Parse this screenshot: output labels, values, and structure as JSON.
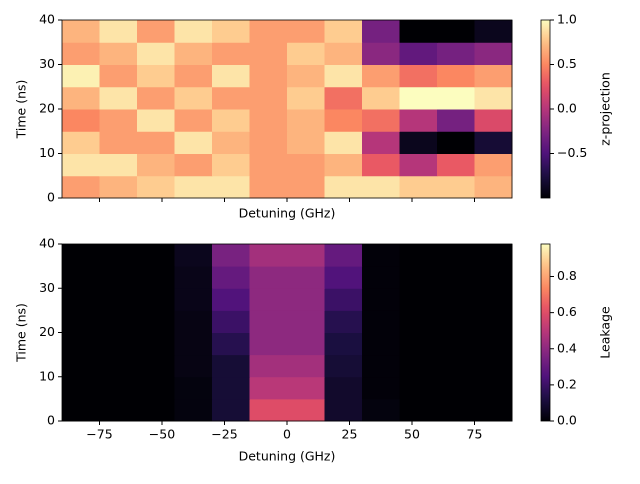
{
  "chart_data": [
    {
      "type": "heatmap",
      "xlabel": "Detuning (GHz)",
      "ylabel": "Time (ns)",
      "colorbar_label": "z-projection",
      "colormap": "magma",
      "xbins": [
        -90,
        -75,
        -60,
        -45,
        -30,
        -15,
        0,
        15,
        30,
        45,
        60,
        75,
        90
      ],
      "ybins": [
        0,
        5,
        10,
        15,
        20,
        25,
        30,
        35,
        40
      ],
      "z": [
        [
          0.6,
          0.7,
          0.8,
          0.9,
          0.9,
          0.6,
          0.6,
          0.9,
          0.9,
          0.8,
          0.8,
          0.7
        ],
        [
          0.9,
          0.9,
          0.7,
          0.6,
          0.8,
          0.6,
          0.6,
          0.7,
          0.3,
          0.0,
          0.3,
          0.6
        ],
        [
          0.8,
          0.6,
          0.6,
          0.9,
          0.7,
          0.6,
          0.7,
          0.9,
          0.0,
          -0.9,
          -1,
          -0.8
        ],
        [
          0.5,
          0.6,
          0.9,
          0.6,
          0.8,
          0.6,
          0.7,
          0.5,
          0.4,
          0.0,
          -0.3,
          0.2
        ],
        [
          0.7,
          0.9,
          0.6,
          0.8,
          0.6,
          0.6,
          0.8,
          0.4,
          0.8,
          1,
          1,
          0.9
        ],
        [
          0.95,
          0.6,
          0.8,
          0.6,
          0.9,
          0.6,
          0.7,
          0.9,
          0.6,
          0.4,
          0.5,
          0.6
        ],
        [
          0.6,
          0.7,
          0.9,
          0.7,
          0.6,
          0.6,
          0.8,
          0.7,
          -0.2,
          -0.4,
          -0.3,
          -0.2
        ],
        [
          0.7,
          0.9,
          0.6,
          0.9,
          0.8,
          0.6,
          0.6,
          0.8,
          -0.3,
          -1,
          -1,
          -0.9
        ]
      ],
      "xlim": [
        -90,
        90
      ],
      "ylim": [
        0,
        40
      ],
      "clim": [
        -1,
        1
      ],
      "xticks": [
        -75,
        -50,
        -25,
        0,
        25,
        50,
        75
      ],
      "xticklabels": false,
      "yticks": [
        0,
        10,
        20,
        30,
        40
      ],
      "cticks": [
        {
          "value": -0.5,
          "label": "−0.5"
        },
        {
          "value": 0,
          "label": "0.0"
        },
        0.5,
        {
          "value": 1,
          "label": "1.0"
        }
      ]
    },
    {
      "type": "heatmap",
      "xlabel": "Detuning (GHz)",
      "ylabel": "Time (ns)",
      "colorbar_label": "Leakage",
      "colormap": "magma",
      "xbins": [
        -90,
        -75,
        -60,
        -45,
        -30,
        -15,
        0,
        15,
        30,
        45,
        60,
        75,
        90
      ],
      "ybins": [
        0,
        5,
        10,
        15,
        20,
        25,
        30,
        35,
        40
      ],
      "z": [
        [
          0,
          0,
          0,
          0.02,
          0.1,
          0.6,
          0.6,
          0.08,
          0.02,
          0,
          0,
          0
        ],
        [
          0,
          0,
          0,
          0.02,
          0.1,
          0.5,
          0.5,
          0.08,
          0.01,
          0,
          0,
          0
        ],
        [
          0,
          0,
          0,
          0.03,
          0.1,
          0.45,
          0.45,
          0.1,
          0.01,
          0,
          0,
          0
        ],
        [
          0,
          0,
          0,
          0.03,
          0.15,
          0.4,
          0.4,
          0.12,
          0.01,
          0,
          0,
          0
        ],
        [
          0,
          0,
          0,
          0.03,
          0.2,
          0.4,
          0.4,
          0.15,
          0.01,
          0,
          0,
          0
        ],
        [
          0,
          0,
          0,
          0.04,
          0.25,
          0.4,
          0.4,
          0.2,
          0.01,
          0,
          0,
          0
        ],
        [
          0,
          0,
          0,
          0.04,
          0.3,
          0.4,
          0.4,
          0.25,
          0.01,
          0,
          0,
          0
        ],
        [
          0,
          0,
          0,
          0.05,
          0.35,
          0.45,
          0.45,
          0.3,
          0.01,
          0,
          0,
          0
        ]
      ],
      "xlim": [
        -90,
        90
      ],
      "ylim": [
        0,
        40
      ],
      "clim": [
        0,
        0.98
      ],
      "xticks": [
        {
          "value": -75,
          "label": "−75"
        },
        {
          "value": -50,
          "label": "−50"
        },
        {
          "value": -25,
          "label": "−25"
        },
        0,
        25,
        50,
        75
      ],
      "xticklabels": true,
      "yticks": [
        0,
        10,
        20,
        30,
        40
      ],
      "cticks": [
        {
          "value": 0,
          "label": "0.0"
        },
        0.2,
        0.4,
        0.6,
        0.8
      ]
    }
  ]
}
